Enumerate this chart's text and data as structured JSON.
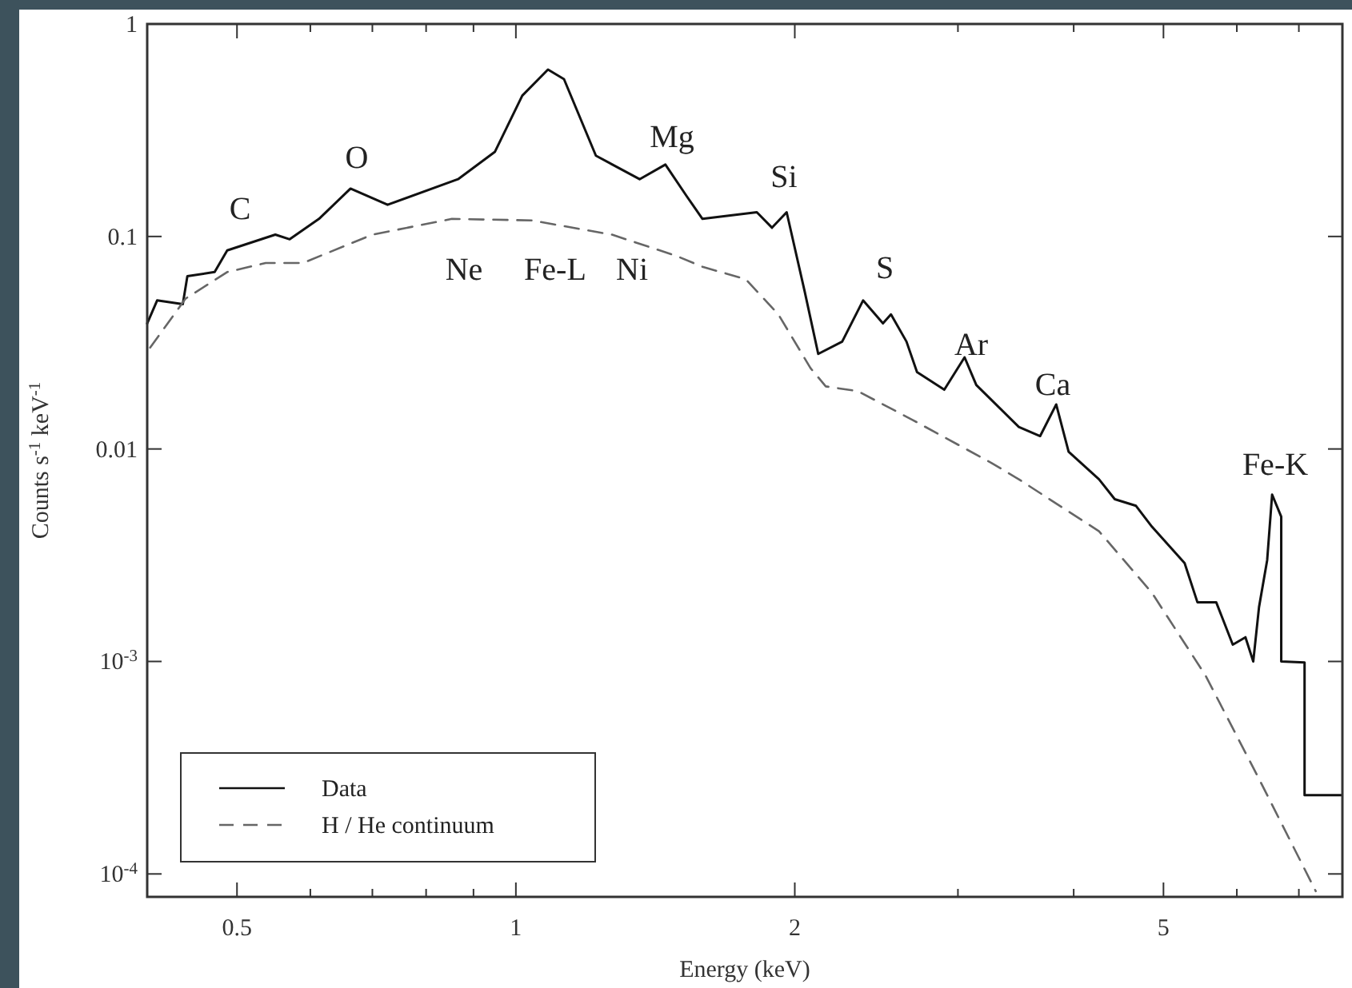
{
  "chart_data": {
    "type": "line",
    "xlabel": "Energy (keV)",
    "ylabel": "Counts s$^{-1}$ keV$^{-1}$",
    "log": "xy",
    "xlim": [
      0.4,
      7.8
    ],
    "ylim": [
      7.8e-05,
      1
    ],
    "xticks": [
      0.5,
      {
        "value": 0.6,
        "label": null
      },
      {
        "value": 0.7,
        "label": null
      },
      {
        "value": 0.8,
        "label": null
      },
      {
        "value": 0.9,
        "label": null
      },
      1,
      2,
      {
        "value": 3,
        "label": null
      },
      {
        "value": 4,
        "label": null
      },
      5,
      {
        "value": 6,
        "label": null
      },
      {
        "value": 7,
        "label": null
      }
    ],
    "yticks": [
      {
        "value": 0.0001,
        "label": "10$^{-4}$"
      },
      {
        "value": 0.001,
        "label": "10$^{-3}$"
      },
      0.01,
      0.1,
      1
    ],
    "legend": "bottom left",
    "grid": false,
    "series": [
      {
        "name": "Data",
        "color": "#111111",
        "line_style": "solid",
        "x": [
          0.4,
          0.41,
          0.437,
          0.442,
          0.473,
          0.488,
          0.55,
          0.57,
          0.613,
          0.663,
          0.727,
          0.866,
          0.949,
          1.016,
          1.083,
          1.127,
          1.22,
          1.36,
          1.45,
          1.53,
          1.59,
          1.82,
          1.89,
          1.96,
          2.05,
          2.12,
          2.25,
          2.37,
          2.49,
          2.54,
          2.64,
          2.71,
          2.9,
          3.05,
          3.14,
          3.49,
          3.68,
          3.83,
          3.95,
          4.26,
          4.43,
          4.67,
          4.86,
          5.27,
          5.44,
          5.7,
          5.94,
          6.13,
          6.25,
          6.34,
          6.47,
          6.55,
          6.7,
          6.7,
          7.1,
          7.1,
          7.78
        ],
        "values": [
          0.039,
          0.05,
          0.048,
          0.065,
          0.068,
          0.086,
          0.102,
          0.097,
          0.121,
          0.168,
          0.141,
          0.186,
          0.25,
          0.46,
          0.61,
          0.55,
          0.24,
          0.186,
          0.218,
          0.154,
          0.121,
          0.13,
          0.11,
          0.13,
          0.055,
          0.028,
          0.032,
          0.05,
          0.039,
          0.043,
          0.032,
          0.023,
          0.019,
          0.027,
          0.02,
          0.0127,
          0.0115,
          0.0162,
          0.0097,
          0.0072,
          0.0058,
          0.0054,
          0.0043,
          0.0029,
          0.0019,
          0.0019,
          0.0012,
          0.0013,
          0.001,
          0.0018,
          0.003,
          0.0061,
          0.0048,
          0.001,
          0.00099,
          0.000235,
          0.000235
        ]
      },
      {
        "name": "H / He continuum",
        "color": "#666666",
        "line_style": "dashed",
        "x": [
          0.403,
          0.44,
          0.488,
          0.537,
          0.589,
          0.7,
          0.853,
          1.04,
          1.27,
          1.49,
          1.59,
          1.77,
          1.92,
          2.08,
          2.16,
          2.34,
          2.68,
          3.26,
          3.49,
          4.26,
          4.86,
          5.55,
          6.34,
          7.3
        ],
        "values": [
          0.03,
          0.051,
          0.068,
          0.075,
          0.075,
          0.102,
          0.121,
          0.119,
          0.102,
          0.081,
          0.072,
          0.063,
          0.043,
          0.024,
          0.0197,
          0.0187,
          0.0137,
          0.0086,
          0.0072,
          0.0041,
          0.0021,
          0.00086,
          0.00028,
          8.3e-05
        ]
      }
    ],
    "annotations": [
      "C",
      "O",
      "Mg",
      "Ne",
      "Fe-L",
      "Ni",
      "Si",
      "S",
      "Ar",
      "Ca",
      "Fe-K"
    ]
  }
}
